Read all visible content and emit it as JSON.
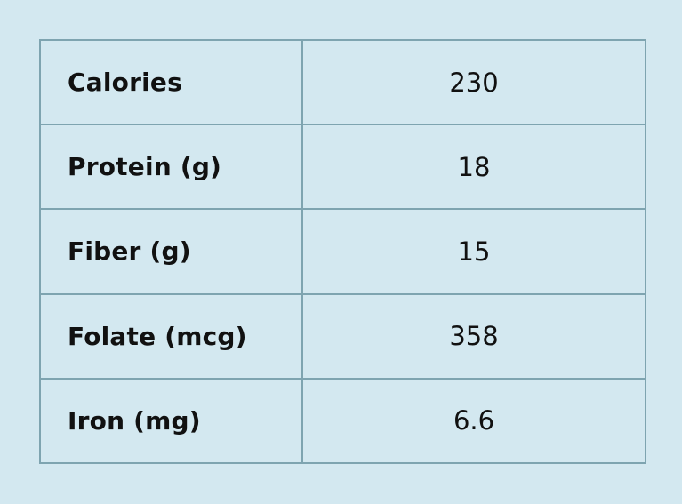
{
  "nutrition": {
    "rows": [
      {
        "label": "Calories",
        "value": "230"
      },
      {
        "label": "Protein (g)",
        "value": "18"
      },
      {
        "label": "Fiber (g)",
        "value": "15"
      },
      {
        "label": "Folate (mcg)",
        "value": "358"
      },
      {
        "label": "Iron (mg)",
        "value": "6.6"
      }
    ]
  },
  "colors": {
    "background": "#d3e8f0",
    "border": "#7ea4b0",
    "text": "#111111"
  }
}
